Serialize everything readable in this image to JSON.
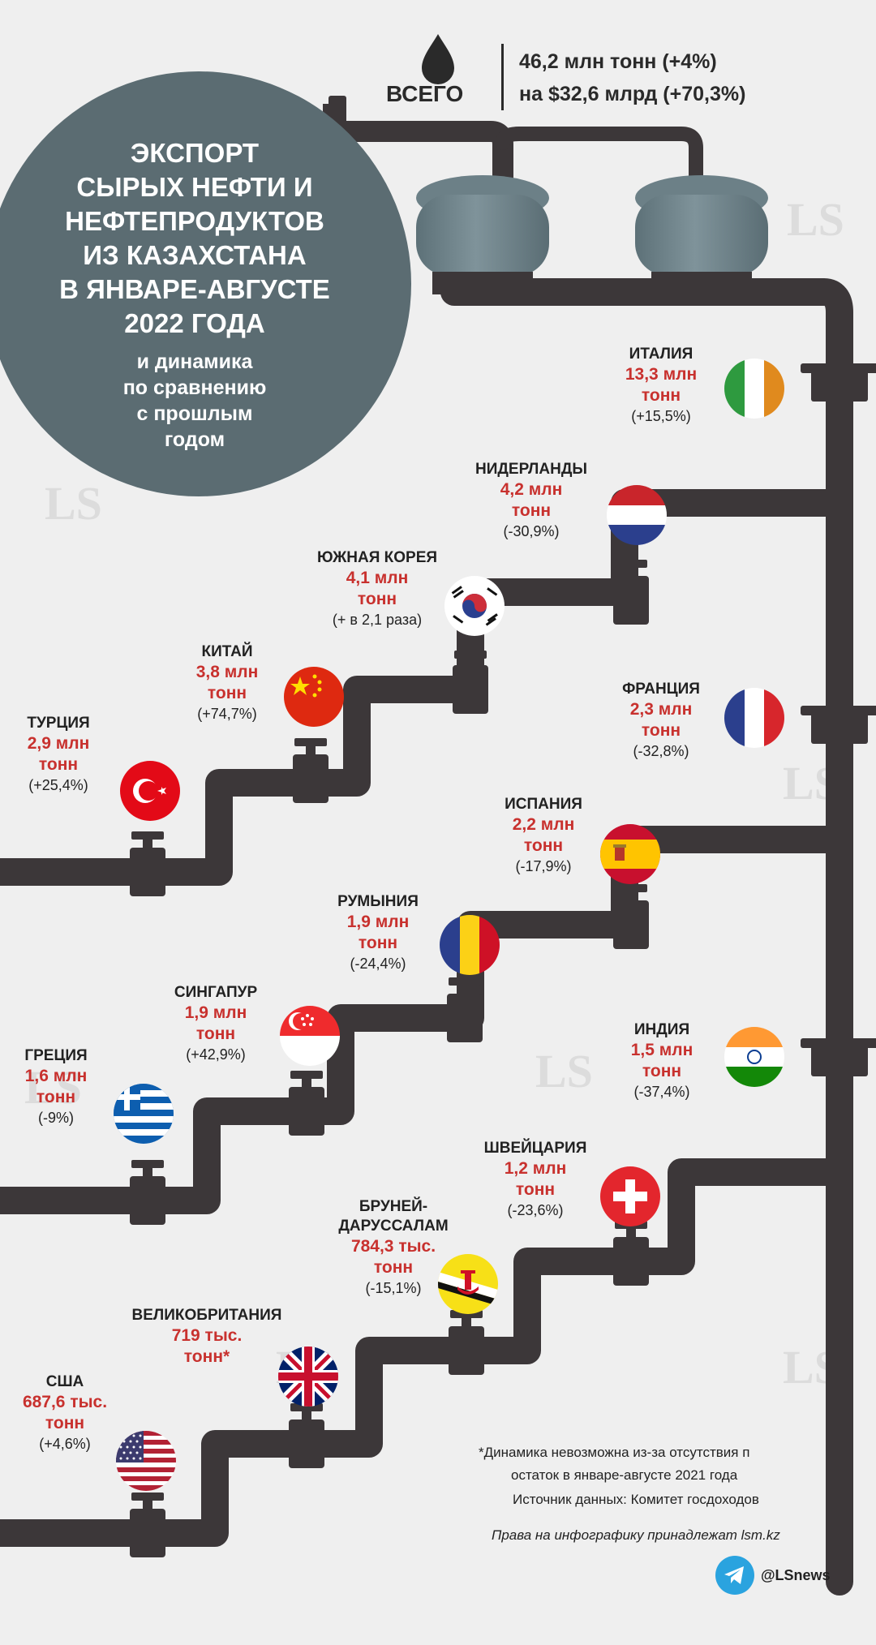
{
  "header": {
    "total_label": "ВСЕГО",
    "line1": "46,2 млн тонн (+4%)",
    "line2": "на $32,6 млрд (+70,3%)"
  },
  "title": {
    "lines": [
      "ЭКСПОРТ",
      "СЫРЫХ НЕФТИ И",
      "НЕФТЕПРОДУКТОВ",
      "ИЗ КАЗАХСТАНА",
      "В ЯНВАРЕ-АВГУСТЕ",
      "2022 ГОДА"
    ],
    "sub_lines": [
      "и динамика",
      "по сравнению",
      "с прошлым",
      "годом"
    ]
  },
  "countries": [
    {
      "name": "ИТАЛИЯ",
      "value1": "13,3 млн",
      "value2": "тонн",
      "change": "(+15,5%)",
      "flag": "italy-flag"
    },
    {
      "name": "НИДЕРЛАНДЫ",
      "value1": "4,2 млн",
      "value2": "тонн",
      "change": "(-30,9%)",
      "flag": "netherlands-flag"
    },
    {
      "name": "ЮЖНАЯ КОРЕЯ",
      "value1": "4,1 млн",
      "value2": "тонн",
      "change": "(+ в 2,1 раза)",
      "flag": "south-korea-flag"
    },
    {
      "name": "КИТАЙ",
      "value1": "3,8 млн",
      "value2": "тонн",
      "change": "(+74,7%)",
      "flag": "china-flag"
    },
    {
      "name": "ТУРЦИЯ",
      "value1": "2,9 млн",
      "value2": "тонн",
      "change": "(+25,4%)",
      "flag": "turkey-flag"
    },
    {
      "name": "ФРАНЦИЯ",
      "value1": "2,3 млн",
      "value2": "тонн",
      "change": "(-32,8%)",
      "flag": "france-flag"
    },
    {
      "name": "ИСПАНИЯ",
      "value1": "2,2 млн",
      "value2": "тонн",
      "change": "(-17,9%)",
      "flag": "spain-flag"
    },
    {
      "name": "РУМЫНИЯ",
      "value1": "1,9 млн",
      "value2": "тонн",
      "change": "(-24,4%)",
      "flag": "romania-flag"
    },
    {
      "name": "СИНГАПУР",
      "value1": "1,9 млн",
      "value2": "тонн",
      "change": "(+42,9%)",
      "flag": "singapore-flag"
    },
    {
      "name": "ИНДИЯ",
      "value1": "1,5 млн",
      "value2": "тонн",
      "change": "(-37,4%)",
      "flag": "india-flag"
    },
    {
      "name": "ГРЕЦИЯ",
      "value1": "1,6 млн",
      "value2": "тонн",
      "change": "(-9%)",
      "flag": "greece-flag"
    },
    {
      "name": "ШВЕЙЦАРИЯ",
      "value1": "1,2 млн",
      "value2": "тонн",
      "change": "(-23,6%)",
      "flag": "switzerland-flag"
    },
    {
      "name_line1": "БРУНЕЙ-",
      "name_line2": "ДАРУССАЛАМ",
      "value1": "784,3 тыс.",
      "value2": "тонн",
      "change": "(-15,1%)",
      "flag": "brunei-flag"
    },
    {
      "name": "ВЕЛИКОБРИТАНИЯ",
      "value1": "719 тыс.",
      "value2": "тонн*",
      "flag": "uk-flag"
    },
    {
      "name": "США",
      "value1": "687,6 тыс.",
      "value2": "тонн",
      "change": "(+4,6%)",
      "flag": "usa-flag"
    }
  ],
  "footnote": {
    "line1": "*Динамика невозможна из-за отсутствия п",
    "line2": "остаток в январе-августе 2021 года",
    "source": "Источник данных: Комитет госдоходов",
    "rights": "Права на инфографику принадлежат lsm.kz",
    "handle": "@LSnews"
  },
  "watermark": {
    "logo": "LS",
    "site": "lsm.kz"
  },
  "colors": {
    "pipe": "#3c3739",
    "circle": "#5b6c72",
    "tank": "#6b7f86",
    "accent": "#c8312e",
    "background": "#efefef"
  }
}
